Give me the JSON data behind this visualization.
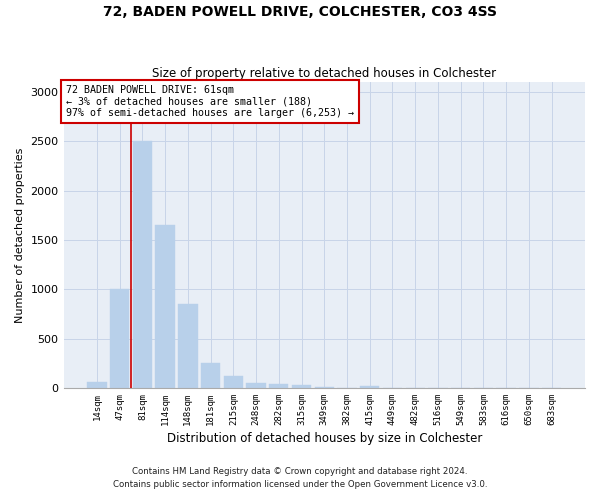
{
  "title1": "72, BADEN POWELL DRIVE, COLCHESTER, CO3 4SS",
  "title2": "Size of property relative to detached houses in Colchester",
  "xlabel": "Distribution of detached houses by size in Colchester",
  "ylabel": "Number of detached properties",
  "categories": [
    "14sqm",
    "47sqm",
    "81sqm",
    "114sqm",
    "148sqm",
    "181sqm",
    "215sqm",
    "248sqm",
    "282sqm",
    "315sqm",
    "349sqm",
    "382sqm",
    "415sqm",
    "449sqm",
    "482sqm",
    "516sqm",
    "549sqm",
    "583sqm",
    "616sqm",
    "650sqm",
    "683sqm"
  ],
  "values": [
    60,
    1000,
    2500,
    1650,
    850,
    250,
    120,
    50,
    40,
    30,
    10,
    0,
    20,
    0,
    0,
    0,
    0,
    0,
    0,
    0,
    0
  ],
  "bar_color": "#b8d0ea",
  "bar_edge_color": "#b8d0ea",
  "grid_color": "#c8d4e8",
  "background_color": "#e8eef6",
  "annotation_text": "72 BADEN POWELL DRIVE: 61sqm\n← 3% of detached houses are smaller (188)\n97% of semi-detached houses are larger (6,253) →",
  "annotation_box_color": "#ffffff",
  "annotation_box_edge_color": "#cc0000",
  "vline_x": 1.48,
  "vline_color": "#cc0000",
  "ylim": [
    0,
    3100
  ],
  "yticks": [
    0,
    500,
    1000,
    1500,
    2000,
    2500,
    3000
  ],
  "footnote1": "Contains HM Land Registry data © Crown copyright and database right 2024.",
  "footnote2": "Contains public sector information licensed under the Open Government Licence v3.0."
}
